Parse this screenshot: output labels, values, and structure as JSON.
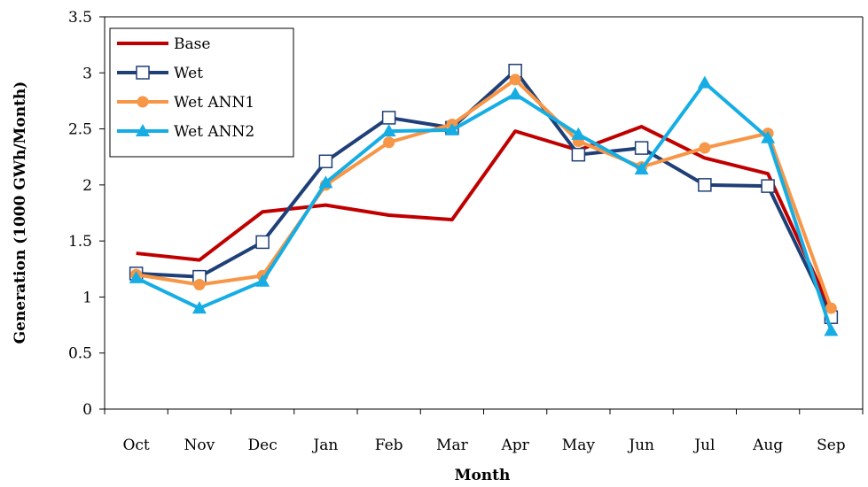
{
  "chart_data": {
    "type": "line",
    "xlabel": "Month",
    "ylabel": "Generation (1000 GWh/Month)",
    "categories": [
      "Oct",
      "Nov",
      "Dec",
      "Jan",
      "Feb",
      "Mar",
      "Apr",
      "May",
      "Jun",
      "Jul",
      "Aug",
      "Sep"
    ],
    "ylim": [
      0,
      3.5
    ],
    "yticks": [
      "0",
      "0.5",
      "1",
      "1.5",
      "2",
      "2.5",
      "3",
      "3.5"
    ],
    "grid": false,
    "legend_position": "top-left",
    "series": [
      {
        "name": "Base",
        "color": "#C00000",
        "marker": "none",
        "values": [
          1.39,
          1.33,
          1.76,
          1.82,
          1.73,
          1.69,
          2.48,
          2.31,
          2.52,
          2.24,
          2.1,
          0.88
        ]
      },
      {
        "name": "Wet",
        "color": "#1F3F77",
        "marker": "square-open",
        "values": [
          1.21,
          1.18,
          1.49,
          2.21,
          2.6,
          2.51,
          3.02,
          2.27,
          2.33,
          2.0,
          1.99,
          0.82
        ]
      },
      {
        "name": "Wet ANN1",
        "color": "#F79646",
        "marker": "circle",
        "values": [
          1.2,
          1.11,
          1.19,
          2.0,
          2.38,
          2.54,
          2.94,
          2.39,
          2.16,
          2.33,
          2.46,
          0.9
        ]
      },
      {
        "name": "Wet ANN2",
        "color": "#16ADE5",
        "marker": "triangle",
        "values": [
          1.17,
          0.9,
          1.14,
          2.02,
          2.48,
          2.49,
          2.81,
          2.45,
          2.14,
          2.91,
          2.42,
          0.7
        ]
      }
    ]
  }
}
